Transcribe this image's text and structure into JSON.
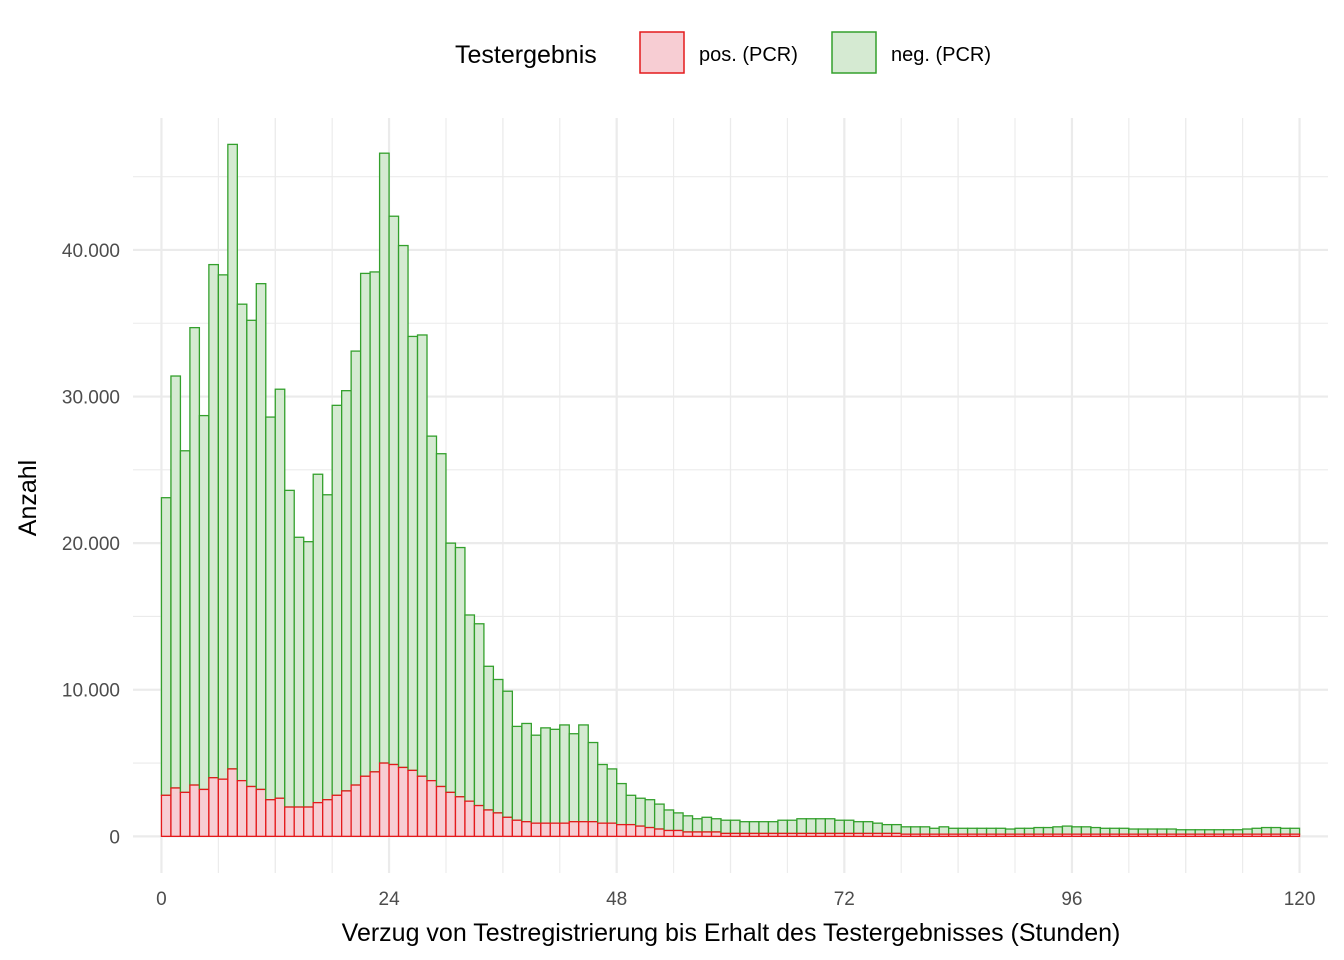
{
  "chart_data": {
    "type": "bar",
    "stacked": true,
    "xlabel": "Verzug von Testregistrierung bis Erhalt des Testergebnisses (Stunden)",
    "ylabel": "Anzahl",
    "legend": {
      "title": "Testergebnis",
      "position": "top"
    },
    "xlim": [
      -3,
      123
    ],
    "ylim": [
      -2500,
      49000
    ],
    "x_ticks": [
      0,
      24,
      48,
      72,
      96,
      120
    ],
    "x_tick_labels": [
      "0",
      "24",
      "48",
      "72",
      "96",
      "120"
    ],
    "y_ticks": [
      0,
      10000,
      20000,
      30000,
      40000
    ],
    "y_tick_labels": [
      "0",
      "10.000",
      "20.000",
      "30.000",
      "40.000"
    ],
    "grid": true,
    "x": [
      1,
      2,
      3,
      4,
      5,
      6,
      7,
      8,
      9,
      10,
      11,
      12,
      13,
      14,
      15,
      16,
      17,
      18,
      19,
      20,
      21,
      22,
      23,
      24,
      25,
      26,
      27,
      28,
      29,
      30,
      31,
      32,
      33,
      34,
      35,
      36,
      37,
      38,
      39,
      40,
      41,
      42,
      43,
      44,
      45,
      46,
      47,
      48,
      49,
      50,
      51,
      52,
      53,
      54,
      55,
      56,
      57,
      58,
      59,
      60,
      61,
      62,
      63,
      64,
      65,
      66,
      67,
      68,
      69,
      70,
      71,
      72,
      73,
      74,
      75,
      76,
      77,
      78,
      79,
      80,
      81,
      82,
      83,
      84,
      85,
      86,
      87,
      88,
      89,
      90,
      91,
      92,
      93,
      94,
      95,
      96,
      97,
      98,
      99,
      100,
      101,
      102,
      103,
      104,
      105,
      106,
      107,
      108,
      109,
      110,
      111,
      112,
      113,
      114,
      115,
      116,
      117,
      118,
      119,
      120
    ],
    "series": [
      {
        "name": "pos. (PCR)",
        "fill": "#f7cdd3",
        "stroke": "#e41a1c",
        "values": [
          2800,
          3300,
          3000,
          3500,
          3200,
          4000,
          3900,
          4600,
          3800,
          3400,
          3200,
          2500,
          2600,
          2000,
          2000,
          2000,
          2300,
          2500,
          2800,
          3100,
          3500,
          4100,
          4400,
          5000,
          4900,
          4700,
          4500,
          4100,
          3800,
          3400,
          3000,
          2700,
          2400,
          2100,
          1800,
          1600,
          1300,
          1100,
          1000,
          900,
          900,
          900,
          900,
          1000,
          1000,
          1000,
          900,
          900,
          800,
          800,
          700,
          600,
          500,
          400,
          400,
          300,
          300,
          300,
          300,
          200,
          200,
          200,
          200,
          200,
          200,
          200,
          200,
          200,
          200,
          200,
          200,
          200,
          200,
          200,
          200,
          200,
          200,
          200,
          150,
          150,
          150,
          150,
          150,
          150,
          150,
          150,
          150,
          150,
          150,
          150,
          150,
          150,
          150,
          150,
          150,
          150,
          150,
          150,
          150,
          150,
          150,
          150,
          150,
          150,
          150,
          150,
          150,
          150,
          150,
          150,
          150,
          150,
          150,
          150,
          150,
          150,
          150,
          150,
          150,
          150
        ]
      },
      {
        "name": "neg. (PCR)",
        "fill": "#d5ead2",
        "stroke": "#33a02c",
        "values": [
          20300,
          28100,
          23300,
          31200,
          25500,
          35000,
          34400,
          42600,
          32500,
          31800,
          34500,
          26100,
          27900,
          21600,
          18400,
          18100,
          22400,
          20800,
          26600,
          27300,
          29600,
          34300,
          34100,
          41600,
          37400,
          35600,
          29600,
          30100,
          23500,
          22700,
          17000,
          17000,
          12700,
          12400,
          9800,
          9100,
          8600,
          6400,
          6700,
          6000,
          6500,
          6400,
          6700,
          6000,
          6600,
          5400,
          4000,
          3700,
          2800,
          2000,
          1900,
          1900,
          1700,
          1400,
          1200,
          1100,
          900,
          1000,
          900,
          900,
          900,
          800,
          800,
          800,
          800,
          900,
          900,
          1000,
          1000,
          1000,
          1000,
          900,
          900,
          800,
          800,
          700,
          600,
          600,
          500,
          500,
          500,
          400,
          500,
          400,
          400,
          400,
          400,
          400,
          400,
          350,
          400,
          400,
          450,
          450,
          500,
          550,
          500,
          500,
          450,
          400,
          400,
          400,
          350,
          350,
          350,
          350,
          350,
          300,
          300,
          300,
          300,
          300,
          300,
          300,
          350,
          400,
          450,
          450,
          400,
          400
        ]
      }
    ]
  }
}
